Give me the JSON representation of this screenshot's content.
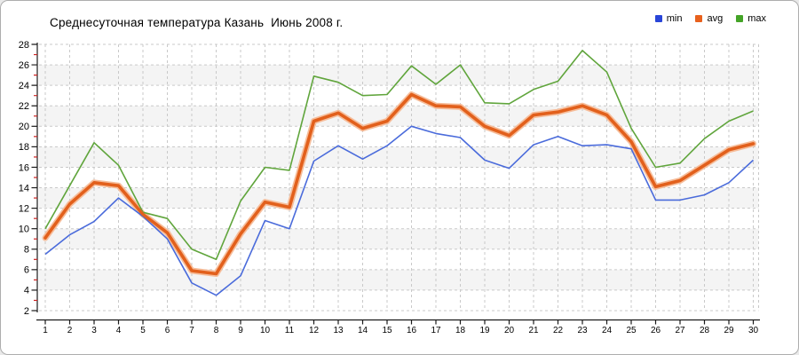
{
  "title": "Среднесуточная температура Казань  Июнь 2008 г.",
  "legend": {
    "items": [
      {
        "label": "min",
        "color": "#2945d8"
      },
      {
        "label": "avg",
        "color": "#e8611d"
      },
      {
        "label": "max",
        "color": "#44a427"
      }
    ]
  },
  "colors": {
    "background": "#ffffff",
    "band": "#f4f4f4",
    "grid": "#c9c9c9",
    "axis": "#1a1a1a",
    "minor_tick": "#cc2222",
    "text": "#000000",
    "min_line": "#4a6bdb",
    "avg_line": "#e2601c",
    "avg_halo": "#f6bd9a",
    "max_line": "#60a53c"
  },
  "chart_data": {
    "type": "line",
    "title": "Среднесуточная температура Казань  Июнь 2008 г.",
    "xlabel": "",
    "ylabel": "",
    "x": [
      1,
      2,
      3,
      4,
      5,
      6,
      7,
      8,
      9,
      10,
      11,
      12,
      13,
      14,
      15,
      16,
      17,
      18,
      19,
      20,
      21,
      22,
      23,
      24,
      25,
      26,
      27,
      28,
      29,
      30
    ],
    "ylim": [
      2,
      28
    ],
    "ytick_step": 2,
    "grid": true,
    "legend_position": "top-right",
    "series": [
      {
        "name": "min",
        "values": [
          7.5,
          9.4,
          10.7,
          13.0,
          11.2,
          9.0,
          4.7,
          3.5,
          5.4,
          10.8,
          10.0,
          16.6,
          18.1,
          16.8,
          18.1,
          20.0,
          19.3,
          18.9,
          16.7,
          15.9,
          18.2,
          19.0,
          18.1,
          18.2,
          17.8,
          12.8,
          12.8,
          13.3,
          14.5,
          16.7
        ]
      },
      {
        "name": "avg",
        "values": [
          9.1,
          12.4,
          14.5,
          14.2,
          11.4,
          9.6,
          5.9,
          5.6,
          9.5,
          12.6,
          12.1,
          20.5,
          21.3,
          19.8,
          20.5,
          23.1,
          22.0,
          21.9,
          20.0,
          19.1,
          21.1,
          21.4,
          22.0,
          21.1,
          18.5,
          14.1,
          14.7,
          16.2,
          17.7,
          18.3
        ]
      },
      {
        "name": "max",
        "values": [
          10.0,
          14.2,
          18.4,
          16.2,
          11.6,
          11.0,
          8.0,
          7.0,
          12.7,
          16.0,
          15.7,
          24.9,
          24.3,
          23.0,
          23.1,
          25.9,
          24.1,
          26.0,
          22.3,
          22.2,
          23.6,
          24.4,
          27.4,
          25.3,
          19.8,
          16.0,
          16.4,
          18.8,
          20.5,
          21.5
        ]
      }
    ]
  }
}
